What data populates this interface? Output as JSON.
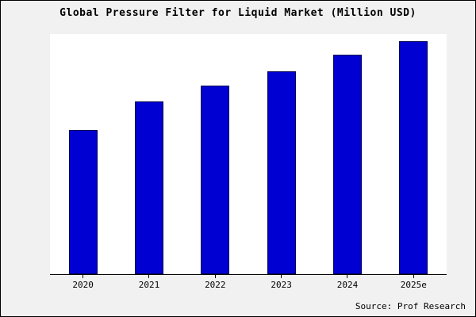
{
  "title": "Global Pressure Filter for Liquid Market (Million USD)",
  "source": "Source: Prof Research",
  "colors": {
    "bar_fill": "#0000d2",
    "bar_edge": "#000050",
    "outer_background": "#f1f1f1",
    "plot_background": "#ffffff",
    "axis": "#000000"
  },
  "chart_data": {
    "type": "bar",
    "title": "Global Pressure Filter for Liquid Market (Million USD)",
    "categories": [
      "2020",
      "2021",
      "2022",
      "2023",
      "2024",
      "2025e"
    ],
    "values": [
      62,
      74,
      81,
      87,
      94,
      100
    ],
    "xlabel": "",
    "ylabel": "",
    "ylim": [
      0,
      103
    ],
    "grid": false,
    "legend": false,
    "y_axis_ticks_visible": false,
    "annotation": "Source: Prof Research"
  }
}
